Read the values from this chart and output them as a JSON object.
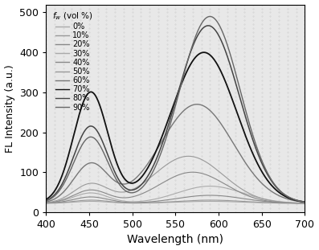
{
  "xlabel": "Wavelength (nm)",
  "ylabel": "FL Intensity (a.u.)",
  "xlim": [
    400,
    700
  ],
  "ylim": [
    0,
    520
  ],
  "xticks": [
    400,
    450,
    500,
    550,
    600,
    650,
    700
  ],
  "yticks": [
    0,
    100,
    200,
    300,
    400,
    500
  ],
  "legend_title": "f_w (vol %)",
  "series": [
    {
      "label": "0%",
      "shade": "#aaaaaa",
      "lw": 0.8,
      "p1x": 452,
      "p1y": 27,
      "p1s": 20,
      "p2x": 590,
      "p2y": 27,
      "p2s": 38,
      "base": 22
    },
    {
      "label": "10%",
      "shade": "#999999",
      "lw": 0.8,
      "p1x": 452,
      "p1y": 30,
      "p1s": 20,
      "p2x": 590,
      "p2y": 30,
      "p2s": 38,
      "base": 22
    },
    {
      "label": "20%",
      "shade": "#888888",
      "lw": 0.8,
      "p1x": 452,
      "p1y": 38,
      "p1s": 20,
      "p2x": 590,
      "p2y": 42,
      "p2s": 38,
      "base": 22
    },
    {
      "label": "30%",
      "shade": "#aaaaaa",
      "lw": 0.8,
      "p1x": 452,
      "p1y": 48,
      "p1s": 20,
      "p2x": 590,
      "p2y": 65,
      "p2s": 38,
      "base": 22
    },
    {
      "label": "40%",
      "shade": "#888888",
      "lw": 0.8,
      "p1x": 452,
      "p1y": 55,
      "p1s": 20,
      "p2x": 570,
      "p2y": 100,
      "p2s": 38,
      "base": 22
    },
    {
      "label": "50%",
      "shade": "#999999",
      "lw": 0.8,
      "p1x": 452,
      "p1y": 70,
      "p1s": 20,
      "p2x": 565,
      "p2y": 140,
      "p2s": 40,
      "base": 22
    },
    {
      "label": "60%",
      "shade": "#777777",
      "lw": 1.0,
      "p1x": 452,
      "p1y": 120,
      "p1s": 20,
      "p2x": 575,
      "p2y": 270,
      "p2s": 42,
      "base": 22
    },
    {
      "label": "70%",
      "shade": "#111111",
      "lw": 1.3,
      "p1x": 452,
      "p1y": 300,
      "p1s": 20,
      "p2x": 583,
      "p2y": 400,
      "p2s": 38,
      "base": 22
    },
    {
      "label": "80%",
      "shade": "#444444",
      "lw": 1.1,
      "p1x": 452,
      "p1y": 215,
      "p1s": 20,
      "p2x": 588,
      "p2y": 467,
      "p2s": 36,
      "base": 22
    },
    {
      "label": "90%",
      "shade": "#666666",
      "lw": 1.0,
      "p1x": 452,
      "p1y": 188,
      "p1s": 20,
      "p2x": 590,
      "p2y": 490,
      "p2s": 35,
      "base": 22
    }
  ],
  "bg_color": "#e8e8e8",
  "dot_color": "#cccccc",
  "figsize": [
    3.97,
    3.11
  ],
  "dpi": 100
}
